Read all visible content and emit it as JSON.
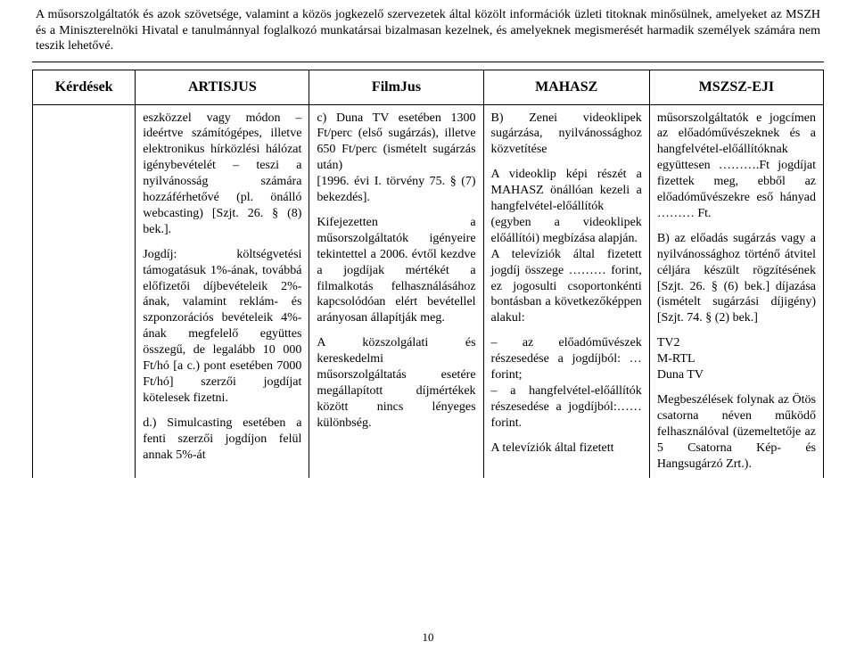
{
  "disclaimer": "A műsorszolgáltatók és azok szövetsége, valamint a közös jogkezelő szervezetek által közölt információk üzleti titoknak minősülnek, amelyeket az MSZH és a Miniszterelnöki Hivatal e tanulmánnyal foglalkozó munkatársai bizalmasan kezelnek, és amelyeknek megismerését harmadik személyek számára nem teszik lehetővé.",
  "headers": {
    "q": "Kérdések",
    "c1": "ARTISJUS",
    "c2": "FilmJus",
    "c3": "MAHASZ",
    "c4": "MSZSZ-EJI"
  },
  "cells": {
    "artisjus": "eszközzel vagy módon – ideértve számítógépes, illetve elektronikus hírközlési hálózat igénybevételét – teszi a nyilvánosság számára hozzáférhetővé (pl. önálló webcasting) [Szjt. 26. § (8) bek.].\n\nJogdíj: költségvetési támogatásuk 1%-ának, továbbá előfizetői díjbevételeik 2%-ának, valamint reklám- és szponzorációs bevételeik 4%-ának megfelelő együttes összegű, de legalább 10 000 Ft/hó [a c.) pont esetében 7000 Ft/hó] szerzői jogdíjat kötelesek fizetni.\n\nd.) Simulcasting esetében a fenti szerzői jogdíjon felül annak 5%-át",
    "filmjus": "c) Duna TV esetében 1300 Ft/perc (első sugárzás), illetve 650 Ft/perc (ismételt sugárzás után)\n[1996. évi I. törvény 75. § (7) bekezdés].\n\nKifejezetten a műsorszolgáltatók igényeire tekintettel a 2006. évtől kezdve a jogdíjak mértékét a filmalkotás felhasználásához kapcsolódóan elért bevétellel arányosan állapítják meg.\n\nA közszolgálati és kereskedelmi műsorszolgáltatás esetére megállapított díjmértékek között nincs lényeges különbség.",
    "mahasz": "B) Zenei videoklipek sugárzása, nyilvánossághoz közvetítése\n\n\nA videoklip képi részét a MAHASZ önállóan kezeli a hangfelvétel-előállítók (egyben a videoklipek előállítói) megbízása alapján.\nA televíziók által fizetett jogdíj összege ……… forint, ez jogosulti csoportonkénti bontásban a következőképpen alakul:\n\n– az előadóművészek részesedése a jogdíjból: … forint;\n– a hangfelvétel-előállítók részesedése a jogdíjból:…… forint.\n\nA televíziók által fizetett",
    "mszsz": "műsorszolgáltatók e jogcímen az előadóművészeknek és a hangfelvétel-előállítóknak együttesen ……….Ft jogdíjat fizettek meg, ebből az előadóművészekre eső hányad ……… Ft.\n\nB) az előadás sugárzás vagy a nyilvánossághoz történő átvitel céljára készült rögzítésének [Szjt. 26. § (6) bek.] díjazása (ismételt sugárzási díjigény) [Szjt. 74. § (2) bek.]\n\nTV2\nM-RTL\nDuna TV\n\nMegbeszélések folynak az Ötös csatorna néven működő felhasználóval (üzemeltetője az 5 Csatorna Kép- és Hangsugárzó Zrt.)."
  },
  "page_number": "10"
}
